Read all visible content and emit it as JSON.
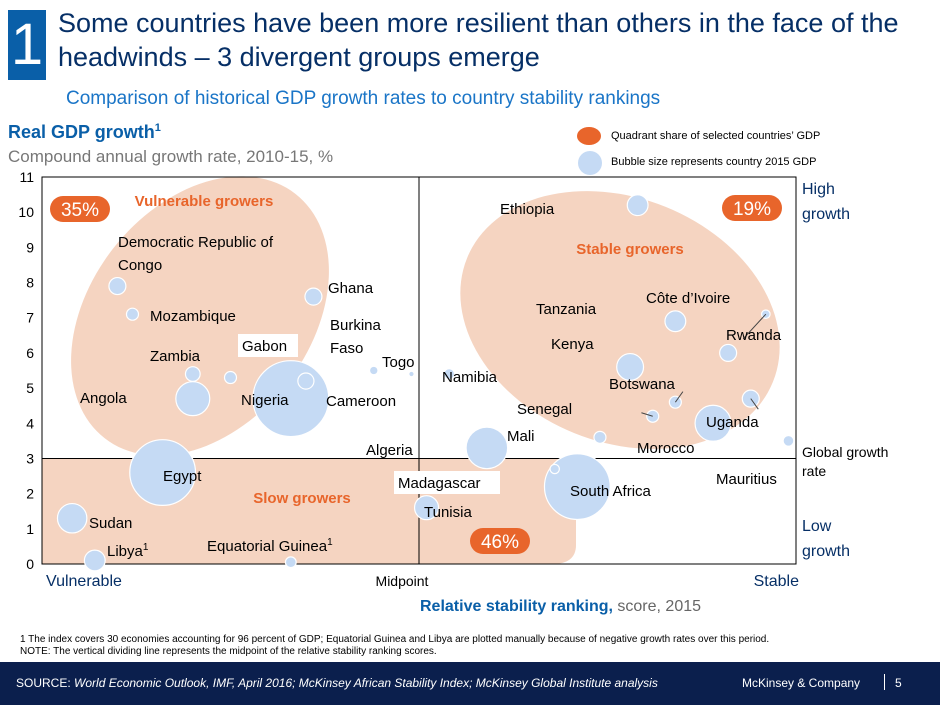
{
  "header": {
    "badge": "1",
    "title": "Some countries have been more resilient than others in the face of the headwinds – 3 divergent groups emerge",
    "subtitle": "Comparison of historical GDP growth rates to country stability rankings"
  },
  "legend": {
    "quadrant_share": "Quadrant share of selected countries’ GDP",
    "bubble_size": "Bubble size represents country 2015 GDP"
  },
  "colors": {
    "accent": "#0a5fa8",
    "bubble": "#c5daf4",
    "group": "#f5d4c1",
    "pct": "#e8652b",
    "footer": "#0b1f4d"
  },
  "chart_data": {
    "type": "scatter",
    "ytitle": "Real GDP growth",
    "ytitle_sup": "1",
    "yunits": "Compound annual growth rate, 2010-15, %",
    "xlabel": "Relative stability ranking,",
    "xlabel_units": "score, 2015",
    "ylim": [
      0,
      11
    ],
    "yticks": [
      0,
      1,
      2,
      3,
      4,
      5,
      6,
      7,
      8,
      9,
      10,
      11
    ],
    "x_axis_labels": {
      "left": "Vulnerable",
      "mid": "Midpoint",
      "right": "Stable"
    },
    "right_labels": {
      "high": "High growth",
      "global": "Global growth rate",
      "low": "Low growth"
    },
    "global_growth_rate": 3,
    "midpoint": 50,
    "groups": [
      {
        "name": "Vulnerable growers",
        "share": "35%"
      },
      {
        "name": "Stable growers",
        "share": "19%"
      },
      {
        "name": "Slow growers",
        "share": "46%"
      }
    ],
    "points": [
      {
        "label": "Ethiopia",
        "x": 79,
        "y": 10.2,
        "size": 3
      },
      {
        "label": "Democratic Republic of Congo",
        "x": 10,
        "y": 7.9,
        "size": 2
      },
      {
        "label": "Mozambique",
        "x": 12,
        "y": 7.1,
        "size": 1
      },
      {
        "label": "Ghana",
        "x": 36,
        "y": 7.6,
        "size": 2
      },
      {
        "label": "Burkina Faso",
        "x": 44,
        "y": 5.5,
        "size": 0.5
      },
      {
        "label": "Togo",
        "x": 49,
        "y": 5.4,
        "size": 0.2
      },
      {
        "label": "Gabon",
        "x": 25,
        "y": 5.3,
        "size": 1
      },
      {
        "label": "Zambia",
        "x": 20,
        "y": 5.4,
        "size": 1.5
      },
      {
        "label": "Cameroon",
        "x": 35,
        "y": 5.2,
        "size": 1.8
      },
      {
        "label": "Namibia",
        "x": 54,
        "y": 5.4,
        "size": 0.8
      },
      {
        "label": "Nigeria",
        "x": 33,
        "y": 4.7,
        "size": 40
      },
      {
        "label": "Angola",
        "x": 20,
        "y": 4.7,
        "size": 8
      },
      {
        "label": "Algeria",
        "x": 59,
        "y": 3.3,
        "size": 12
      },
      {
        "label": "Tanzania",
        "x": 84,
        "y": 6.9,
        "size": 3
      },
      {
        "label": "Côte d’Ivoire",
        "x": 91,
        "y": 6.0,
        "size": 2
      },
      {
        "label": "Rwanda",
        "x": 96,
        "y": 7.1,
        "size": 0.5
      },
      {
        "label": "Kenya",
        "x": 78,
        "y": 5.6,
        "size": 5
      },
      {
        "label": "Botswana",
        "x": 84,
        "y": 4.6,
        "size": 1
      },
      {
        "label": "Senegal",
        "x": 81,
        "y": 4.2,
        "size": 1
      },
      {
        "label": "Uganda",
        "x": 94,
        "y": 4.7,
        "size": 2
      },
      {
        "label": "Morocco",
        "x": 89,
        "y": 4.0,
        "size": 9
      },
      {
        "label": "Mali",
        "x": 74,
        "y": 3.6,
        "size": 1
      },
      {
        "label": "Mauritius",
        "x": 99,
        "y": 3.5,
        "size": 0.8
      },
      {
        "label": "Madagascar",
        "x": 68,
        "y": 2.7,
        "size": 0.6
      },
      {
        "label": "South Africa",
        "x": 71,
        "y": 2.2,
        "size": 30
      },
      {
        "label": "Tunisia",
        "x": 51,
        "y": 1.6,
        "size": 4
      },
      {
        "label": "Egypt",
        "x": 16,
        "y": 2.6,
        "size": 30
      },
      {
        "label": "Sudan",
        "x": 4,
        "y": 1.3,
        "size": 6
      },
      {
        "label": "Libya",
        "x": 7,
        "y": 0.1,
        "size": 3
      },
      {
        "label": "Equatorial Guinea",
        "x": 33,
        "y": 0.05,
        "size": 0.8
      }
    ],
    "label_sup": {
      "Libya": "1",
      "Equatorial Guinea": "1"
    }
  },
  "footnote": {
    "line1": "1 The index covers 30 economies accounting for 96 percent of GDP; Equatorial Guinea and Libya are plotted manually because of negative growth rates over this period.",
    "line2": "NOTE: The vertical dividing line represents the midpoint of the relative stability ranking scores."
  },
  "footer": {
    "source_label": "SOURCE:",
    "source_text": "World Economic Outlook, IMF, April 2016; McKinsey African Stability Index; McKinsey Global Institute analysis",
    "company": "McKinsey & Company",
    "page": "5"
  }
}
